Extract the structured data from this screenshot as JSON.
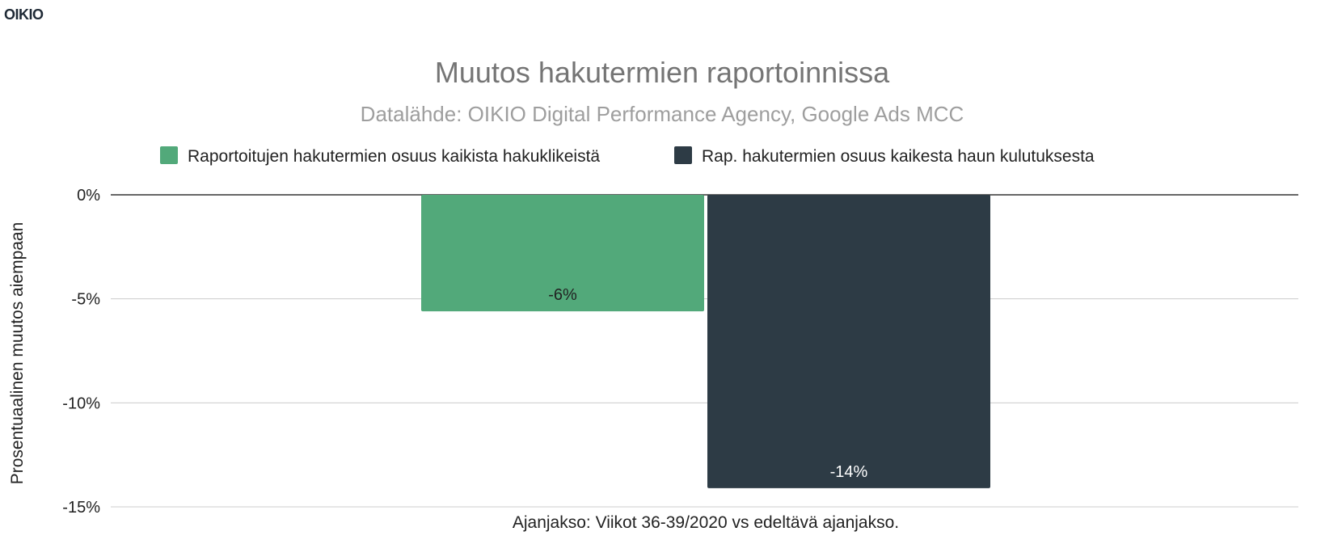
{
  "brand": {
    "logo_text": "OIKIO"
  },
  "chart_data": {
    "type": "bar",
    "title": "Muutos hakutermien raportoinnissa",
    "subtitle": "Datalähde: OIKIO Digital Performance Agency, Google Ads MCC",
    "xlabel": "Ajanjakso: Viikot 36-39/2020 vs edeltävä ajanjakso.",
    "ylabel": "Prosentuaalinen muutos aiempaan",
    "ylim": [
      -15,
      0
    ],
    "yticks": [
      0,
      -5,
      -10,
      -15
    ],
    "ytick_labels": [
      "0%",
      "-5%",
      "-10%",
      "-15%"
    ],
    "grid": true,
    "legend_position": "top",
    "series": [
      {
        "name": "Raportoitujen hakutermien osuus kaikista hakuklikeistä",
        "values": [
          -5.6
        ],
        "data_label": "-6%",
        "color": "#52a97a",
        "label_color": "#222222"
      },
      {
        "name": "Rap. hakutermien osuus kaikesta haun kulutuksesta",
        "values": [
          -14.1
        ],
        "data_label": "-14%",
        "color": "#2d3b45",
        "label_color": "#ffffff"
      }
    ]
  }
}
